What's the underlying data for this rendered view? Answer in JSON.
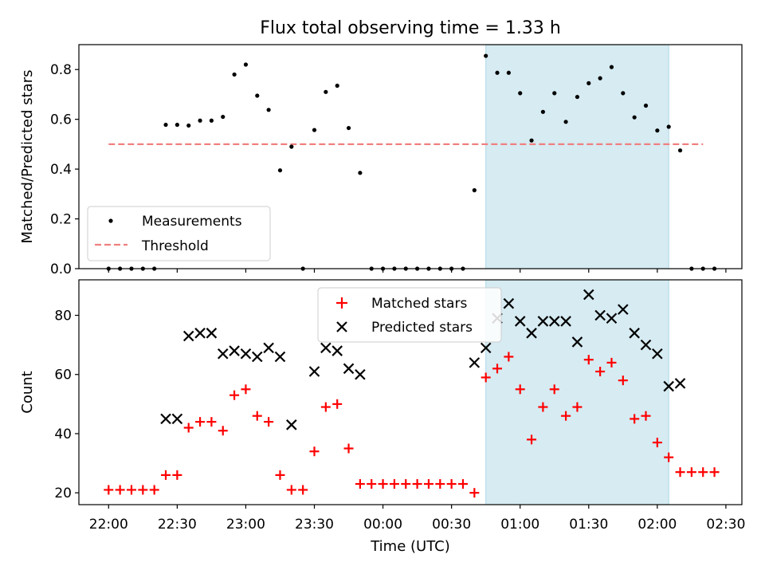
{
  "chart_data": {
    "title": "Flux total observing time = 1.33 h",
    "xlabel": "Time (UTC)",
    "xlim": [
      "21:47",
      "02:37"
    ],
    "xticks": [
      "22:00",
      "22:30",
      "23:00",
      "23:30",
      "00:00",
      "00:30",
      "01:00",
      "01:30",
      "02:00",
      "02:30"
    ],
    "shade": {
      "start": "00:45",
      "end": "02:05",
      "color": "#add8e6"
    },
    "panels": [
      {
        "type": "scatter",
        "ylabel": "Matched/Predicted stars",
        "ylim": [
          0,
          0.9
        ],
        "yticks": [
          0.0,
          0.2,
          0.4,
          0.6,
          0.8
        ],
        "ytick_labels": [
          "0.0",
          "0.2",
          "0.4",
          "0.6",
          "0.8"
        ],
        "legend": {
          "position": "lower-left"
        },
        "threshold": {
          "name": "Threshold",
          "value": 0.5,
          "x_range": [
            "22:00",
            "02:20"
          ],
          "color": "#f08080"
        },
        "series": [
          {
            "name": "Measurements",
            "marker": "dot",
            "color": "#000000",
            "points": [
              [
                "22:00",
                0
              ],
              [
                "22:05",
                0
              ],
              [
                "22:10",
                0
              ],
              [
                "22:15",
                0
              ],
              [
                "22:20",
                0
              ],
              [
                "22:25",
                0.578
              ],
              [
                "22:30",
                0.578
              ],
              [
                "22:35",
                0.575
              ],
              [
                "22:40",
                0.595
              ],
              [
                "22:45",
                0.595
              ],
              [
                "22:50",
                0.61
              ],
              [
                "22:55",
                0.78
              ],
              [
                "23:00",
                0.82
              ],
              [
                "23:05",
                0.695
              ],
              [
                "23:10",
                0.638
              ],
              [
                "23:15",
                0.395
              ],
              [
                "23:20",
                0.49
              ],
              [
                "23:25",
                0
              ],
              [
                "23:30",
                0.557
              ],
              [
                "23:35",
                0.71
              ],
              [
                "23:40",
                0.735
              ],
              [
                "23:45",
                0.565
              ],
              [
                "23:50",
                0.385
              ],
              [
                "23:55",
                0
              ],
              [
                "00:00",
                0
              ],
              [
                "00:05",
                0
              ],
              [
                "00:10",
                0
              ],
              [
                "00:15",
                0
              ],
              [
                "00:20",
                0
              ],
              [
                "00:25",
                0
              ],
              [
                "00:30",
                0
              ],
              [
                "00:35",
                0
              ],
              [
                "00:40",
                0.315
              ],
              [
                "00:45",
                0.855
              ],
              [
                "00:50",
                0.787
              ],
              [
                "00:55",
                0.787
              ],
              [
                "01:00",
                0.705
              ],
              [
                "01:05",
                0.515
              ],
              [
                "01:10",
                0.63
              ],
              [
                "01:15",
                0.705
              ],
              [
                "01:20",
                0.59
              ],
              [
                "01:25",
                0.69
              ],
              [
                "01:30",
                0.745
              ],
              [
                "01:35",
                0.765
              ],
              [
                "01:40",
                0.81
              ],
              [
                "01:45",
                0.705
              ],
              [
                "01:50",
                0.608
              ],
              [
                "01:55",
                0.655
              ],
              [
                "02:00",
                0.555
              ],
              [
                "02:05",
                0.57
              ],
              [
                "02:10",
                0.475
              ],
              [
                "02:15",
                0
              ],
              [
                "02:20",
                0
              ],
              [
                "02:25",
                0
              ]
            ]
          }
        ]
      },
      {
        "type": "scatter",
        "ylabel": "Count",
        "ylim": [
          16,
          92
        ],
        "yticks": [
          20,
          40,
          60,
          80
        ],
        "ytick_labels": [
          "20",
          "40",
          "60",
          "80"
        ],
        "legend": {
          "position": "upper-center"
        },
        "series": [
          {
            "name": "Matched stars",
            "marker": "plus",
            "color": "#ff0000",
            "points": [
              [
                "22:00",
                21
              ],
              [
                "22:05",
                21
              ],
              [
                "22:10",
                21
              ],
              [
                "22:15",
                21
              ],
              [
                "22:20",
                21
              ],
              [
                "22:25",
                26
              ],
              [
                "22:30",
                26
              ],
              [
                "22:35",
                42
              ],
              [
                "22:40",
                44
              ],
              [
                "22:45",
                44
              ],
              [
                "22:50",
                41
              ],
              [
                "22:55",
                53
              ],
              [
                "23:00",
                55
              ],
              [
                "23:05",
                46
              ],
              [
                "23:10",
                44
              ],
              [
                "23:15",
                26
              ],
              [
                "23:20",
                21
              ],
              [
                "23:25",
                21
              ],
              [
                "23:30",
                34
              ],
              [
                "23:35",
                49
              ],
              [
                "23:40",
                50
              ],
              [
                "23:45",
                35
              ],
              [
                "23:50",
                23
              ],
              [
                "23:55",
                23
              ],
              [
                "00:00",
                23
              ],
              [
                "00:05",
                23
              ],
              [
                "00:10",
                23
              ],
              [
                "00:15",
                23
              ],
              [
                "00:20",
                23
              ],
              [
                "00:25",
                23
              ],
              [
                "00:30",
                23
              ],
              [
                "00:35",
                23
              ],
              [
                "00:40",
                20
              ],
              [
                "00:45",
                59
              ],
              [
                "00:50",
                62
              ],
              [
                "00:55",
                66
              ],
              [
                "01:00",
                55
              ],
              [
                "01:05",
                38
              ],
              [
                "01:10",
                49
              ],
              [
                "01:15",
                55
              ],
              [
                "01:20",
                46
              ],
              [
                "01:25",
                49
              ],
              [
                "01:30",
                65
              ],
              [
                "01:35",
                61
              ],
              [
                "01:40",
                64
              ],
              [
                "01:45",
                58
              ],
              [
                "01:50",
                45
              ],
              [
                "01:55",
                46
              ],
              [
                "02:00",
                37
              ],
              [
                "02:05",
                32
              ],
              [
                "02:10",
                27
              ],
              [
                "02:15",
                27
              ],
              [
                "02:20",
                27
              ],
              [
                "02:25",
                27
              ]
            ]
          },
          {
            "name": "Predicted stars",
            "marker": "x",
            "color": "#000000",
            "points": [
              [
                "22:25",
                45
              ],
              [
                "22:30",
                45
              ],
              [
                "22:35",
                73
              ],
              [
                "22:40",
                74
              ],
              [
                "22:45",
                74
              ],
              [
                "22:50",
                67
              ],
              [
                "22:55",
                68
              ],
              [
                "23:00",
                67
              ],
              [
                "23:05",
                66
              ],
              [
                "23:10",
                69
              ],
              [
                "23:15",
                66
              ],
              [
                "23:20",
                43
              ],
              [
                "23:30",
                61
              ],
              [
                "23:35",
                69
              ],
              [
                "23:40",
                68
              ],
              [
                "23:45",
                62
              ],
              [
                "23:50",
                60
              ],
              [
                "00:40",
                64
              ],
              [
                "00:45",
                69
              ],
              [
                "00:50",
                79
              ],
              [
                "00:55",
                84
              ],
              [
                "01:00",
                78
              ],
              [
                "01:05",
                74
              ],
              [
                "01:10",
                78
              ],
              [
                "01:15",
                78
              ],
              [
                "01:20",
                78
              ],
              [
                "01:25",
                71
              ],
              [
                "01:30",
                87
              ],
              [
                "01:35",
                80
              ],
              [
                "01:40",
                79
              ],
              [
                "01:45",
                82
              ],
              [
                "01:50",
                74
              ],
              [
                "01:55",
                70
              ],
              [
                "02:00",
                67
              ],
              [
                "02:05",
                56
              ],
              [
                "02:10",
                57
              ]
            ]
          }
        ]
      }
    ]
  }
}
